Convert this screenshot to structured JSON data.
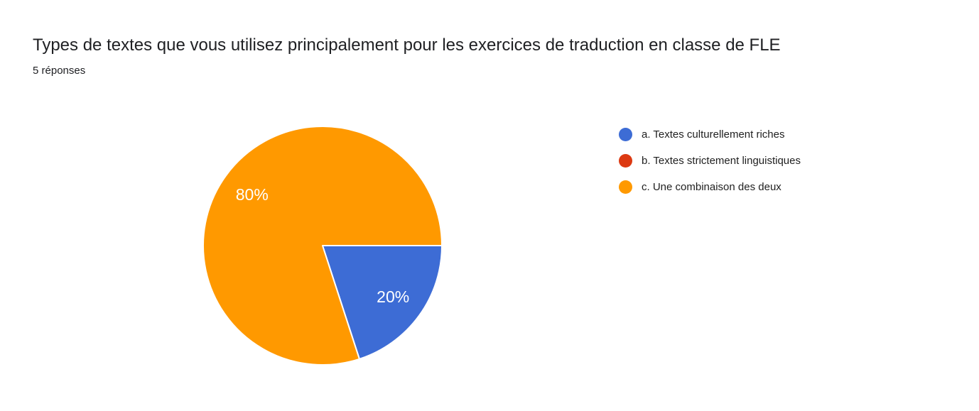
{
  "header": {
    "title": "Types de textes que vous utilisez principalement pour les exercices de traduction en classe de FLE",
    "responses": "5 réponses"
  },
  "chart_data": {
    "type": "pie",
    "title": "Types de textes que vous utilisez principalement pour les exercices de traduction en classe de FLE",
    "subtitle": "5 réponses",
    "total_responses": 5,
    "legend_position": "right",
    "start_angle": "east-clockwise",
    "slice_label_color": "#ffffff",
    "slices": [
      {
        "label": "a. Textes culturellement riches",
        "percent": 20,
        "color": "#3d6cd5",
        "data_label": "20%"
      },
      {
        "label": "b. Textes strictement linguistiques",
        "percent": 0,
        "color": "#dc3912",
        "data_label": ""
      },
      {
        "label": "c. Une combinaison des deux",
        "percent": 80,
        "color": "#ff9900",
        "data_label": "80%"
      }
    ]
  }
}
